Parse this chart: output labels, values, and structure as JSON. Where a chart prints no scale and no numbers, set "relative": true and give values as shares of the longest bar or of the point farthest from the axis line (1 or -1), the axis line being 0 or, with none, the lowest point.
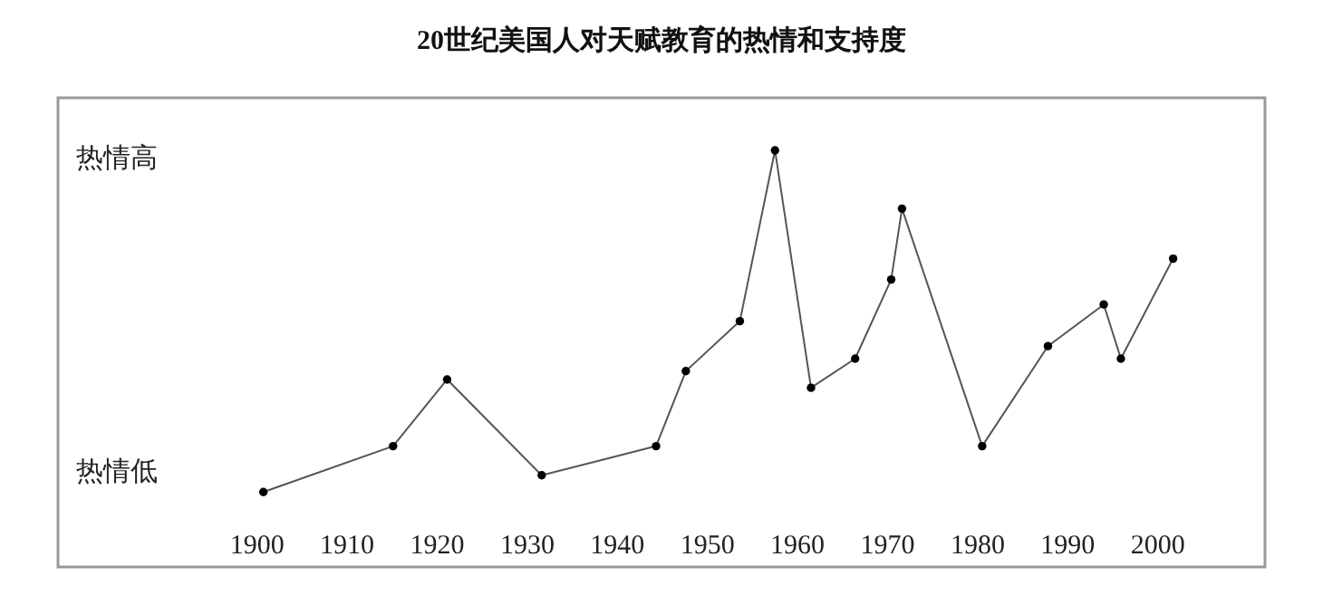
{
  "chart_data": {
    "type": "line",
    "title": "20世纪美国人对天赋教育的热情和支持度",
    "x": [
      1900.8,
      1915.2,
      1921.2,
      1931.7,
      1944.4,
      1947.7,
      1953.7,
      1957.6,
      1961.6,
      1966.5,
      1970.5,
      1971.7,
      1980.6,
      1987.9,
      1994.1,
      1996.0,
      2001.8
    ],
    "series": [
      {
        "color": "#555555",
        "values": [
          0.18,
          0.29,
          0.45,
          0.22,
          0.29,
          0.47,
          0.59,
          1,
          0.43,
          0.5,
          0.69,
          0.86,
          0.29,
          0.53,
          0.63,
          0.5,
          0.74
        ]
      }
    ],
    "relative": true,
    "xlim": [
      1878,
      2012
    ],
    "xticks": [
      1900,
      1910,
      1920,
      1930,
      1940,
      1950,
      1960,
      1970,
      1980,
      1990,
      2000
    ],
    "annotations": [
      "热情高",
      "热情低"
    ],
    "grid": false,
    "marker": "circle",
    "line_style": "solid"
  }
}
